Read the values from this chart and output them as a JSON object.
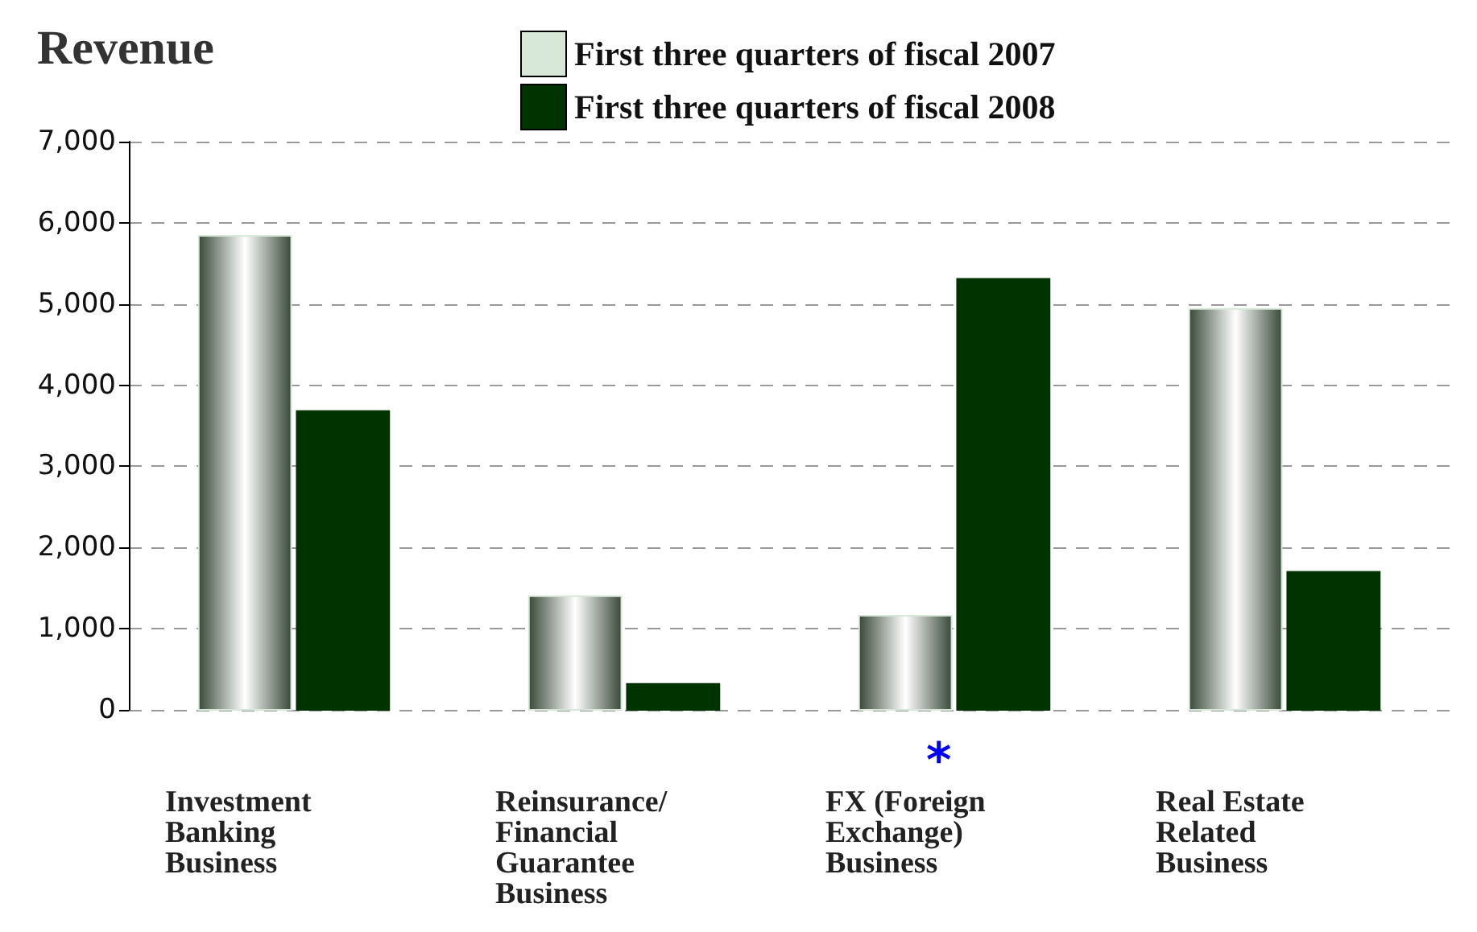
{
  "chart_data": {
    "type": "bar",
    "title": "Revenue",
    "categories": [
      "Investment Banking Business",
      "Reinsurance/ Financial Guarantee Business",
      "FX (Foreign Exchange) Business",
      "Real Estate Related Business"
    ],
    "series": [
      {
        "name": "First three quarters of fiscal 2007",
        "color": "#d8e8d8",
        "values": [
          5840,
          1400,
          1160,
          4940
        ]
      },
      {
        "name": "First three quarters of fiscal 2008",
        "color": "#003300",
        "values": [
          3680,
          320,
          5310,
          1700
        ]
      }
    ],
    "ylim": [
      0,
      7000
    ],
    "yticks": [
      0,
      {
        "value": 1000,
        "label": "1,000"
      },
      {
        "value": 2000,
        "label": "2,000"
      },
      {
        "value": 3000,
        "label": "3,000"
      },
      {
        "value": 4000,
        "label": "4,000"
      },
      {
        "value": 5000,
        "label": "5,000"
      },
      {
        "value": 6000,
        "label": "6,000"
      },
      {
        "value": 7000,
        "label": "7,000"
      }
    ],
    "grid": "y",
    "legend": "top",
    "annotations": [
      "*"
    ]
  }
}
